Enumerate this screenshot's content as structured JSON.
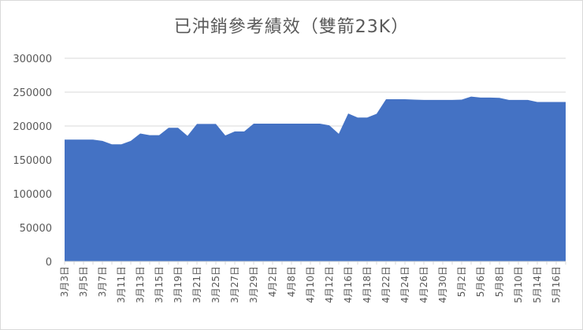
{
  "chart_data": {
    "type": "area",
    "title": "已沖銷參考績效（雙箭23K）",
    "xlabel": "",
    "ylabel": "",
    "ylim": [
      0,
      300000
    ],
    "yticks": [
      "0",
      "50000",
      "100000",
      "150000",
      "200000",
      "250000",
      "300000"
    ],
    "grid": "horizontal",
    "legend": "none",
    "color": "#4472c4",
    "x_tick_labels": [
      "3月3日",
      "3月5日",
      "3月7日",
      "3月11日",
      "3月13日",
      "3月15日",
      "3月19日",
      "3月21日",
      "3月25日",
      "3月27日",
      "3月29日",
      "4月2日",
      "4月8日",
      "4月10日",
      "4月12日",
      "4月16日",
      "4月18日",
      "4月22日",
      "4月24日",
      "4月26日",
      "4月30日",
      "5月2日",
      "5月6日",
      "5月8日",
      "5月10日",
      "5月14日",
      "5月16日"
    ],
    "values": [
      180000,
      180000,
      180000,
      180000,
      178000,
      173000,
      173000,
      178000,
      189000,
      186500,
      186500,
      197500,
      197500,
      185500,
      203000,
      203000,
      203000,
      186000,
      192000,
      192000,
      203500,
      203500,
      203500,
      203500,
      203500,
      203500,
      203500,
      203500,
      201000,
      188500,
      218500,
      212500,
      212500,
      218000,
      239500,
      239500,
      239500,
      239000,
      238500,
      238500,
      238500,
      238500,
      239000,
      243500,
      242000,
      242000,
      241500,
      238500,
      238500,
      238500,
      235500,
      235500,
      235500,
      235500
    ]
  }
}
